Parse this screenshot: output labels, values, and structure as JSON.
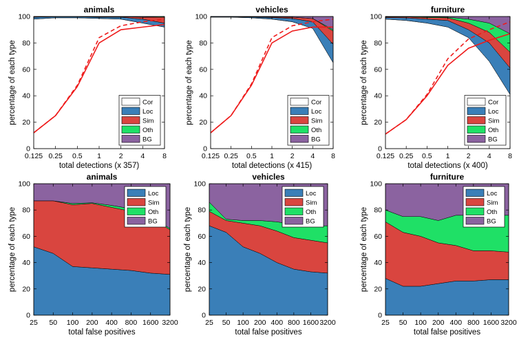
{
  "figure": {
    "colors": {
      "Cor": "#ffffff",
      "Loc": "#3a7fb8",
      "Sim": "#d9453f",
      "Oth": "#1fe066",
      "BG": "#8b63a0",
      "curve": "#ee1b1b"
    }
  },
  "chart_data": [
    {
      "type": "area",
      "title": "animals",
      "xlabel": "total detections (x 357)",
      "ylabel": "percentage of each type",
      "x": [
        0.125,
        0.25,
        0.5,
        1,
        2,
        4,
        8
      ],
      "x_tick_labels": [
        "0.125",
        "0.25",
        "0.5",
        "1",
        "2",
        "4",
        "8"
      ],
      "x_scale": "log2",
      "ylim": [
        0,
        100
      ],
      "y_ticks": [
        0,
        20,
        40,
        60,
        80,
        100
      ],
      "legend": [
        "Cor",
        "Loc",
        "Sim",
        "Oth",
        "BG"
      ],
      "legend_position": "lower-right",
      "series": [
        {
          "name": "Cor",
          "values": [
            98,
            99,
            99,
            98.5,
            98,
            95,
            92
          ]
        },
        {
          "name": "Loc",
          "values": [
            1.5,
            0.8,
            0.8,
            1,
            1.5,
            3,
            3
          ]
        },
        {
          "name": "Sim",
          "values": [
            0.4,
            0.1,
            0.1,
            0.3,
            0.3,
            1.5,
            4.5
          ]
        },
        {
          "name": "Oth",
          "values": [
            0,
            0,
            0,
            0,
            0,
            0,
            0.5
          ]
        },
        {
          "name": "BG",
          "values": [
            0.1,
            0.1,
            0.1,
            0.2,
            0.2,
            0.5,
            0
          ]
        }
      ],
      "curves": [
        {
          "style": "solid",
          "values": [
            12,
            25,
            47,
            80,
            90,
            92,
            94
          ]
        },
        {
          "style": "dashed",
          "values": [
            12,
            25,
            48,
            84,
            93,
            96,
            98
          ]
        }
      ]
    },
    {
      "type": "area",
      "title": "vehicles",
      "xlabel": "total detections (x 415)",
      "ylabel": "percentage of each type",
      "x": [
        0.125,
        0.25,
        0.5,
        1,
        2,
        4,
        8
      ],
      "x_tick_labels": [
        "0.125",
        "0.25",
        "0.5",
        "1",
        "2",
        "4",
        "8"
      ],
      "x_scale": "log2",
      "ylim": [
        0,
        100
      ],
      "y_ticks": [
        0,
        20,
        40,
        60,
        80,
        100
      ],
      "legend": [
        "Cor",
        "Loc",
        "Sim",
        "Oth",
        "BG"
      ],
      "legend_position": "lower-right",
      "series": [
        {
          "name": "Cor",
          "values": [
            99.5,
            99.5,
            99,
            98,
            96,
            91,
            65
          ]
        },
        {
          "name": "Loc",
          "values": [
            0.3,
            0.3,
            0.6,
            1.2,
            2.5,
            5,
            14
          ]
        },
        {
          "name": "Sim",
          "values": [
            0.1,
            0.1,
            0.2,
            0.4,
            1,
            2.5,
            10
          ]
        },
        {
          "name": "Oth",
          "values": [
            0,
            0,
            0,
            0,
            0,
            0,
            1
          ]
        },
        {
          "name": "BG",
          "values": [
            0.1,
            0.1,
            0.2,
            0.4,
            0.5,
            1.5,
            10
          ]
        }
      ],
      "curves": [
        {
          "style": "solid",
          "values": [
            12,
            25,
            48,
            80,
            89,
            92,
            92
          ]
        },
        {
          "style": "dashed",
          "values": [
            12,
            25,
            49,
            84,
            93,
            96,
            98
          ]
        }
      ]
    },
    {
      "type": "area",
      "title": "furniture",
      "xlabel": "total detections (x 400)",
      "ylabel": "percentage of each type",
      "x": [
        0.125,
        0.25,
        0.5,
        1,
        2,
        4,
        8
      ],
      "x_tick_labels": [
        "0.125",
        "0.25",
        "0.5",
        "1",
        "2",
        "4",
        "8"
      ],
      "x_scale": "log2",
      "ylim": [
        0,
        100
      ],
      "y_ticks": [
        0,
        20,
        40,
        60,
        80,
        100
      ],
      "legend": [
        "Cor",
        "Loc",
        "Sim",
        "Oth",
        "BG"
      ],
      "legend_position": "lower-right",
      "series": [
        {
          "name": "Cor",
          "values": [
            98,
            97,
            95,
            92,
            84,
            66,
            41
          ]
        },
        {
          "name": "Loc",
          "values": [
            1.2,
            2,
            3,
            5,
            6,
            14,
            20
          ]
        },
        {
          "name": "Sim",
          "values": [
            0.4,
            0.7,
            1.2,
            2,
            5,
            8,
            12
          ]
        },
        {
          "name": "Oth",
          "values": [
            0.2,
            0.2,
            0.5,
            0.5,
            3,
            7,
            14
          ]
        },
        {
          "name": "BG",
          "values": [
            0.2,
            0.1,
            0.3,
            0.5,
            2,
            5,
            13
          ]
        }
      ],
      "curves": [
        {
          "style": "solid",
          "values": [
            11,
            22,
            40,
            63,
            76,
            82,
            87
          ]
        },
        {
          "style": "dashed",
          "values": [
            11,
            22,
            41,
            68,
            83,
            90,
            96
          ]
        }
      ]
    },
    {
      "type": "area",
      "title": "animals",
      "xlabel": "total false positives",
      "ylabel": "percentage of each type",
      "x": [
        25,
        50,
        100,
        200,
        400,
        800,
        1600,
        3200
      ],
      "x_tick_labels": [
        "25",
        "50",
        "100",
        "200",
        "400",
        "800",
        "1600",
        "3200"
      ],
      "x_scale": "log2",
      "ylim": [
        0,
        100
      ],
      "y_ticks": [
        0,
        20,
        40,
        60,
        80,
        100
      ],
      "legend": [
        "Loc",
        "Sim",
        "Oth",
        "BG"
      ],
      "legend_position": "top-right",
      "series": [
        {
          "name": "Loc",
          "values": [
            52,
            47,
            37,
            36,
            35,
            34,
            32,
            31
          ]
        },
        {
          "name": "Sim",
          "values": [
            35,
            40,
            47,
            49,
            47,
            45,
            42,
            34
          ]
        },
        {
          "name": "Oth",
          "values": [
            0,
            0,
            1,
            0.5,
            1.5,
            2,
            1,
            1
          ]
        },
        {
          "name": "BG",
          "values": [
            13,
            13,
            15,
            14.5,
            16.5,
            19,
            25,
            34
          ]
        }
      ]
    },
    {
      "type": "area",
      "title": "vehicles",
      "xlabel": "total false positives",
      "ylabel": "percentage of each type",
      "x": [
        25,
        50,
        100,
        200,
        400,
        800,
        1600,
        3200
      ],
      "x_tick_labels": [
        "25",
        "50",
        "100",
        "200",
        "400",
        "800",
        "1600",
        "3200"
      ],
      "x_scale": "log2",
      "ylim": [
        0,
        100
      ],
      "y_ticks": [
        0,
        20,
        40,
        60,
        80,
        100
      ],
      "legend": [
        "Loc",
        "Sim",
        "Oth",
        "BG"
      ],
      "legend_position": "top-right",
      "series": [
        {
          "name": "Loc",
          "values": [
            68,
            63,
            52,
            47,
            40,
            35,
            33,
            32
          ]
        },
        {
          "name": "Sim",
          "values": [
            11,
            9,
            18,
            21,
            24,
            24,
            24,
            23
          ]
        },
        {
          "name": "Oth",
          "values": [
            7,
            1,
            2,
            4,
            7,
            10,
            11,
            13
          ]
        },
        {
          "name": "BG",
          "values": [
            14,
            27,
            28,
            28,
            29,
            31,
            32,
            32
          ]
        }
      ]
    },
    {
      "type": "area",
      "title": "furniture",
      "xlabel": "total false positives",
      "ylabel": "percentage of each type",
      "x": [
        25,
        50,
        100,
        200,
        400,
        800,
        1600,
        3200
      ],
      "x_tick_labels": [
        "25",
        "50",
        "100",
        "200",
        "400",
        "800",
        "1600",
        "3200"
      ],
      "x_scale": "log2",
      "ylim": [
        0,
        100
      ],
      "y_ticks": [
        0,
        20,
        40,
        60,
        80,
        100
      ],
      "legend": [
        "Loc",
        "Sim",
        "Oth",
        "BG"
      ],
      "legend_position": "top-right",
      "series": [
        {
          "name": "Loc",
          "values": [
            28,
            22,
            22,
            24,
            26,
            26,
            27,
            27
          ]
        },
        {
          "name": "Sim",
          "values": [
            43,
            41,
            38,
            31,
            27,
            23,
            22,
            21
          ]
        },
        {
          "name": "Oth",
          "values": [
            9,
            12,
            15,
            17,
            23,
            27,
            27,
            28
          ]
        },
        {
          "name": "BG",
          "values": [
            20,
            25,
            25,
            28,
            24,
            24,
            24,
            24
          ]
        }
      ]
    }
  ]
}
